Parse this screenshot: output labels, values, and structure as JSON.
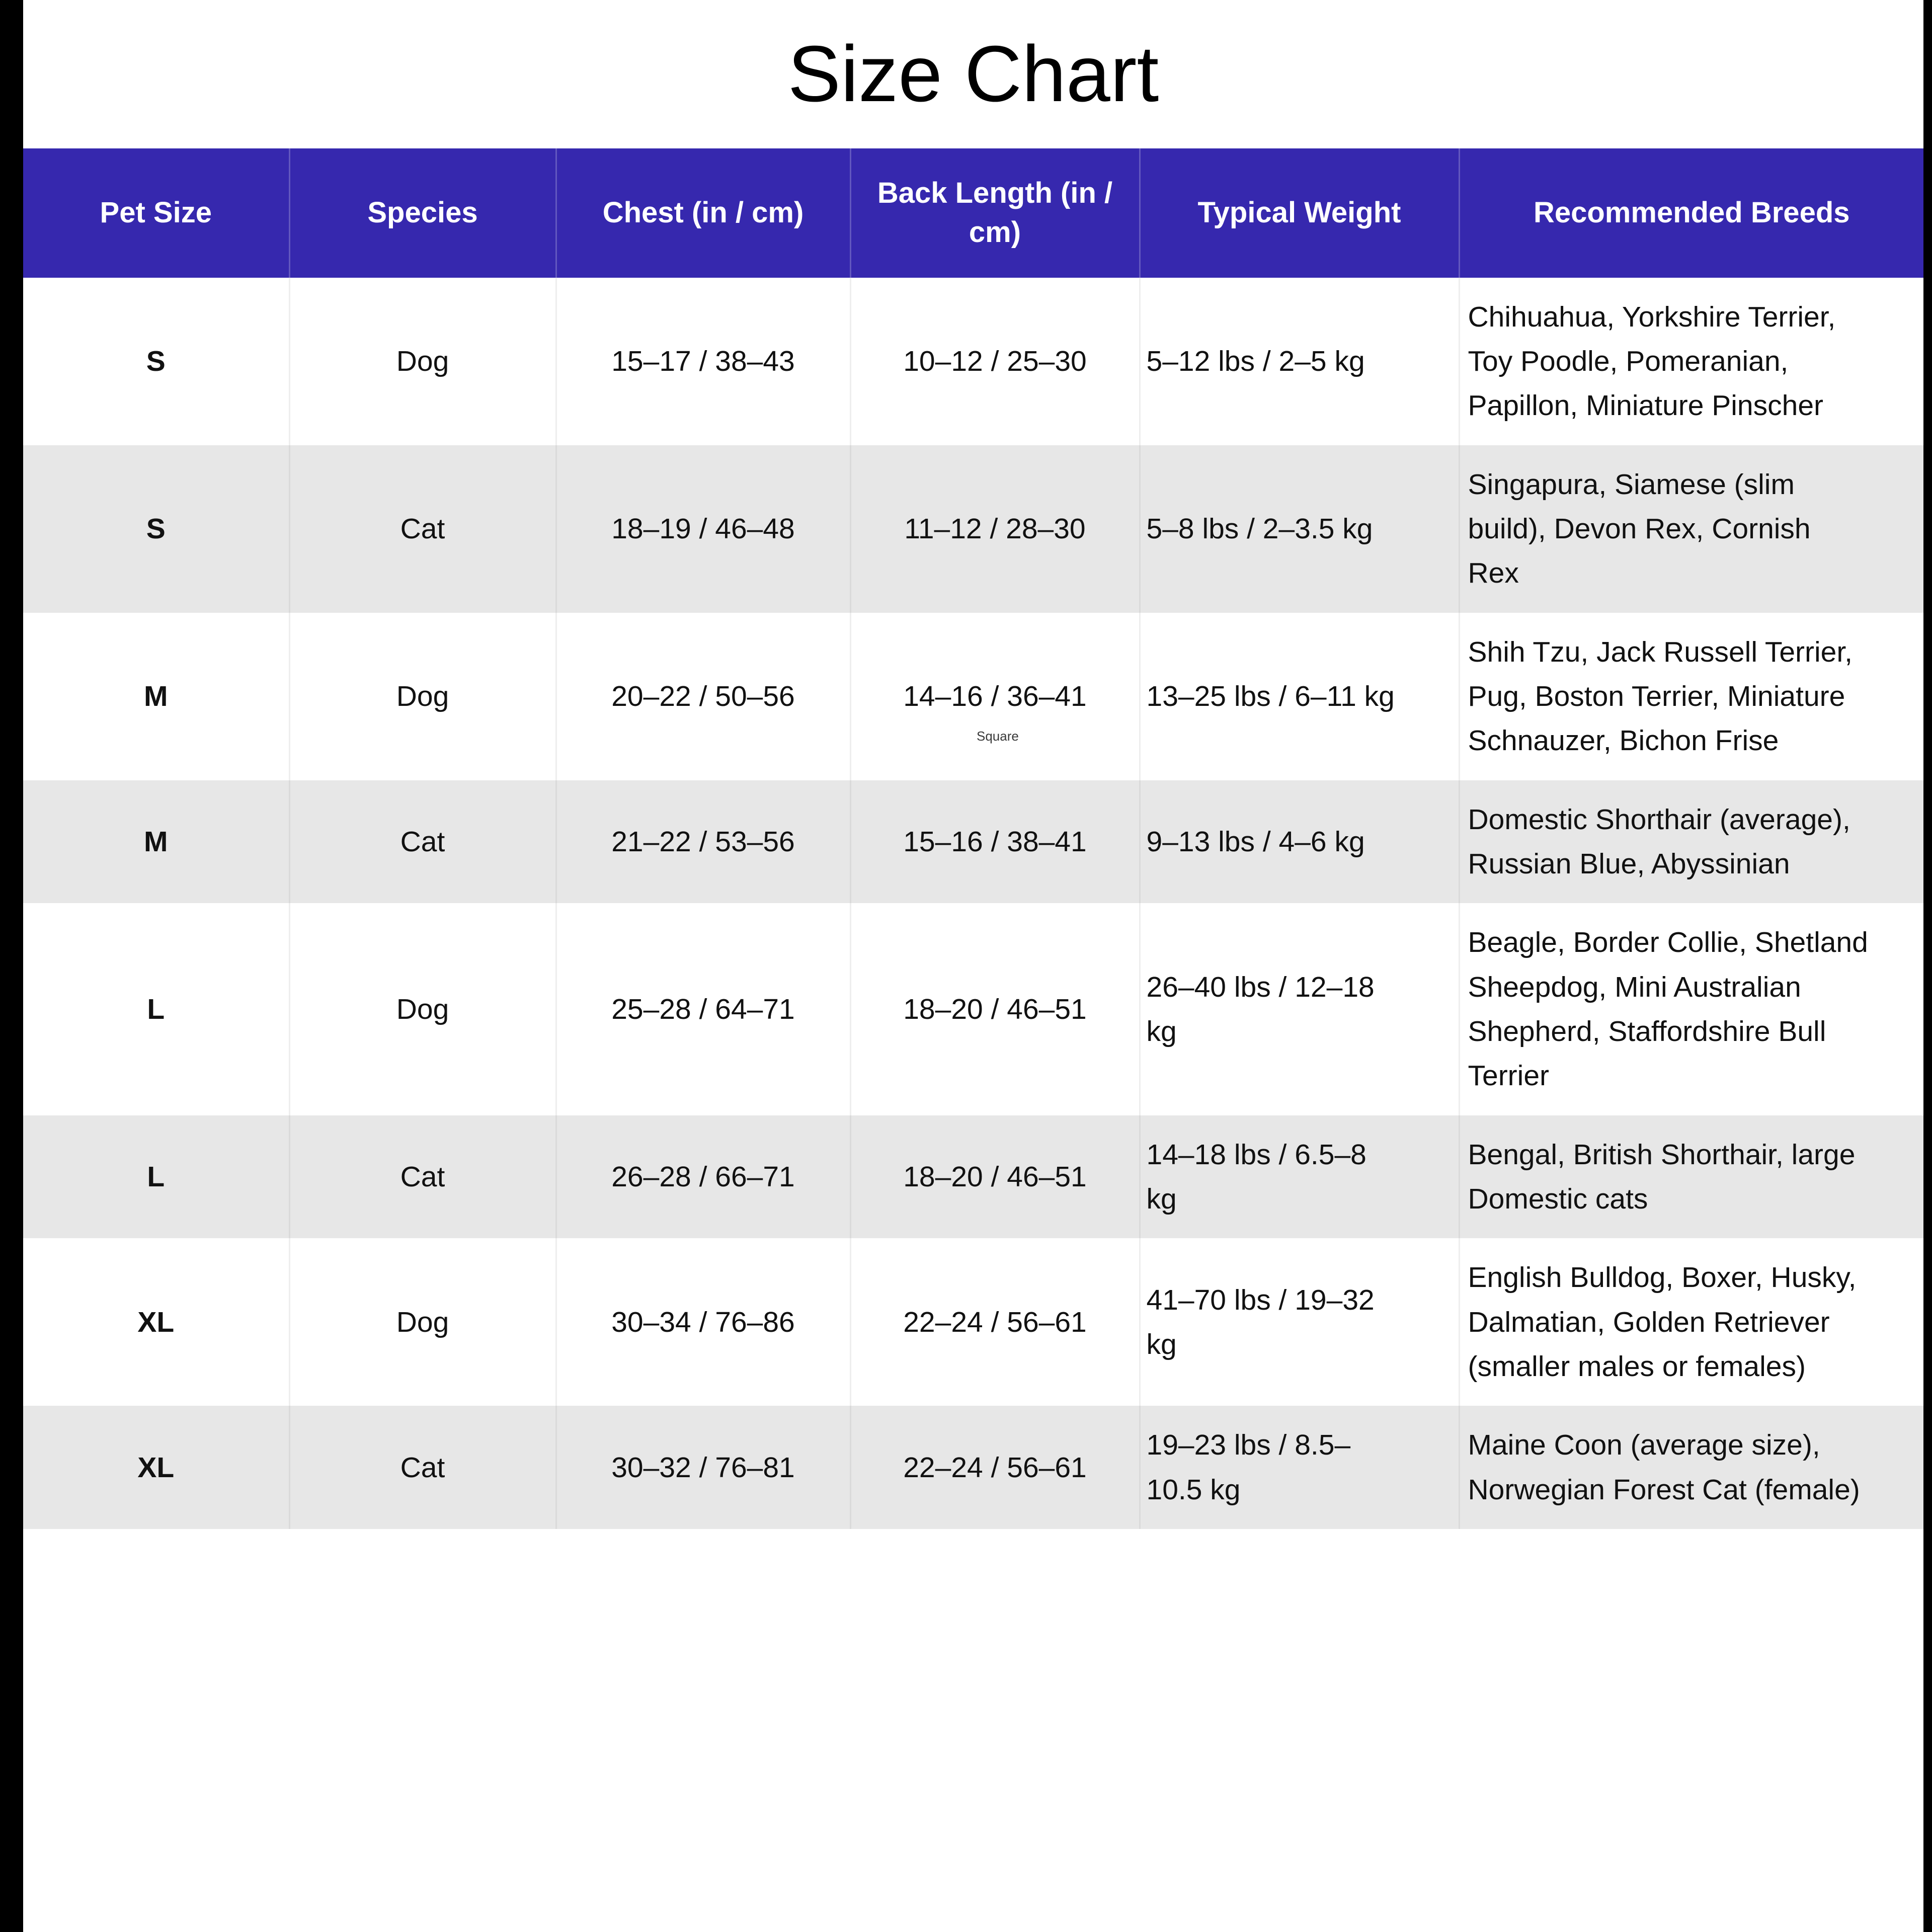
{
  "title": "Size Chart",
  "watermark": "Square",
  "colors": {
    "header_bg": "#3628AE",
    "header_text": "#FFFFFF",
    "row_bg": "#FFFFFF",
    "row_alt_bg": "#E7E7E7",
    "title_color": "#000000",
    "side_bar": "#000000",
    "body_text": "#111111"
  },
  "chart_data": {
    "type": "table",
    "title": "Size Chart",
    "columns": [
      "Pet Size",
      "Species",
      "Chest (in / cm)",
      "Back Length (in / cm)",
      "Typical Weight",
      "Recommended Breeds"
    ],
    "rows": [
      {
        "pet_size": "S",
        "species": "Dog",
        "chest": "15–17 / 38–43",
        "back_length": "10–12 / 25–30",
        "weight": "5–12 lbs / 2–5 kg",
        "breeds": "Chihuahua, Yorkshire Terrier, Toy Poodle, Pomeranian, Papillon, Miniature Pinscher"
      },
      {
        "pet_size": "S",
        "species": "Cat",
        "chest": "18–19 / 46–48",
        "back_length": "11–12 / 28–30",
        "weight": "5–8 lbs / 2–3.5 kg",
        "breeds": "Singapura, Siamese (slim build), Devon Rex, Cornish Rex"
      },
      {
        "pet_size": "M",
        "species": "Dog",
        "chest": "20–22 / 50–56",
        "back_length": "14–16 / 36–41",
        "weight": "13–25 lbs / 6–11 kg",
        "breeds": "Shih Tzu, Jack Russell Terrier, Pug, Boston Terrier, Miniature Schnauzer, Bichon Frise"
      },
      {
        "pet_size": "M",
        "species": "Cat",
        "chest": "21–22 / 53–56",
        "back_length": "15–16 / 38–41",
        "weight": "9–13 lbs / 4–6 kg",
        "breeds": "Domestic Shorthair (average), Russian Blue, Abyssinian"
      },
      {
        "pet_size": "L",
        "species": "Dog",
        "chest": "25–28 / 64–71",
        "back_length": "18–20 / 46–51",
        "weight": "26–40 lbs / 12–18 kg",
        "breeds": "Beagle, Border Collie, Shetland Sheepdog, Mini Australian Shepherd, Staffordshire Bull Terrier"
      },
      {
        "pet_size": "L",
        "species": "Cat",
        "chest": "26–28 / 66–71",
        "back_length": "18–20 / 46–51",
        "weight": "14–18 lbs / 6.5–8 kg",
        "breeds": "Bengal, British Shorthair, large Domestic cats"
      },
      {
        "pet_size": "XL",
        "species": "Dog",
        "chest": "30–34 / 76–86",
        "back_length": "22–24 / 56–61",
        "weight": "41–70 lbs / 19–32 kg",
        "breeds": "English Bulldog, Boxer, Husky, Dalmatian, Golden Retriever (smaller males or females)"
      },
      {
        "pet_size": "XL",
        "species": "Cat",
        "chest": "30–32 / 76–81",
        "back_length": "22–24 / 56–61",
        "weight": "19–23 lbs / 8.5–10.5 kg",
        "breeds": "Maine Coon (average size), Norwegian Forest Cat (female)"
      }
    ]
  }
}
